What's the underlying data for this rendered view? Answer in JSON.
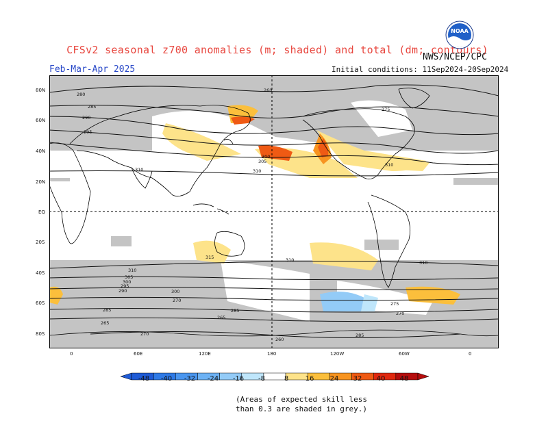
{
  "title": "CFSv2 seasonal z700 anomalies (m; shaded) and total (dm; contours)",
  "agency": "NWS/NCEP/CPC",
  "logo_text": "NOAA",
  "season": "Feb-Mar-Apr 2025",
  "initial_conditions": "Initial conditions: 11Sep2024-20Sep2024",
  "lat_labels": [
    "80N",
    "60N",
    "40N",
    "20N",
    "EQ",
    "20S",
    "40S",
    "60S",
    "80S"
  ],
  "lon_labels": [
    "0",
    "60E",
    "120E",
    "180",
    "120W",
    "60W",
    "0"
  ],
  "colorbar": {
    "ticks": [
      "-48",
      "-40",
      "-32",
      "-24",
      "-16",
      "-8",
      "8",
      "16",
      "24",
      "32",
      "40",
      "48"
    ],
    "colors": [
      "#1f5bd6",
      "#2f7ae6",
      "#4a96ef",
      "#6db2f4",
      "#93cbf7",
      "#bfe6fb",
      "#ffffff",
      "#fde38a",
      "#fbbf3c",
      "#f79420",
      "#ef5a14",
      "#e0280f",
      "#b50d0d"
    ]
  },
  "note_line1": "(Areas of expected skill less",
  "note_line2": "than 0.3 are shaded in grey.)",
  "contour_labels": [
    "280",
    "285",
    "290",
    "295",
    "300",
    "305",
    "310",
    "315",
    "275",
    "270",
    "265",
    "260"
  ],
  "chart_data": {
    "type": "heatmap",
    "title": "CFSv2 seasonal z700 anomalies (m; shaded) and total (dm; contours)",
    "season": "Feb-Mar-Apr 2025",
    "units_shaded": "m",
    "units_contours": "dm",
    "colorbar_levels": [
      -48,
      -40,
      -32,
      -24,
      -16,
      -8,
      8,
      16,
      24,
      32,
      40,
      48
    ],
    "x_axis": [
      "0",
      "60E",
      "120E",
      "180",
      "120W",
      "60W",
      "0"
    ],
    "y_axis": [
      "80N",
      "60N",
      "40N",
      "20N",
      "EQ",
      "20S",
      "40S",
      "60S",
      "80S"
    ],
    "contour_levels_dm": [
      260,
      265,
      270,
      275,
      280,
      285,
      290,
      295,
      300,
      305,
      310,
      315
    ],
    "grey_mask": "skill less than 0.3"
  }
}
